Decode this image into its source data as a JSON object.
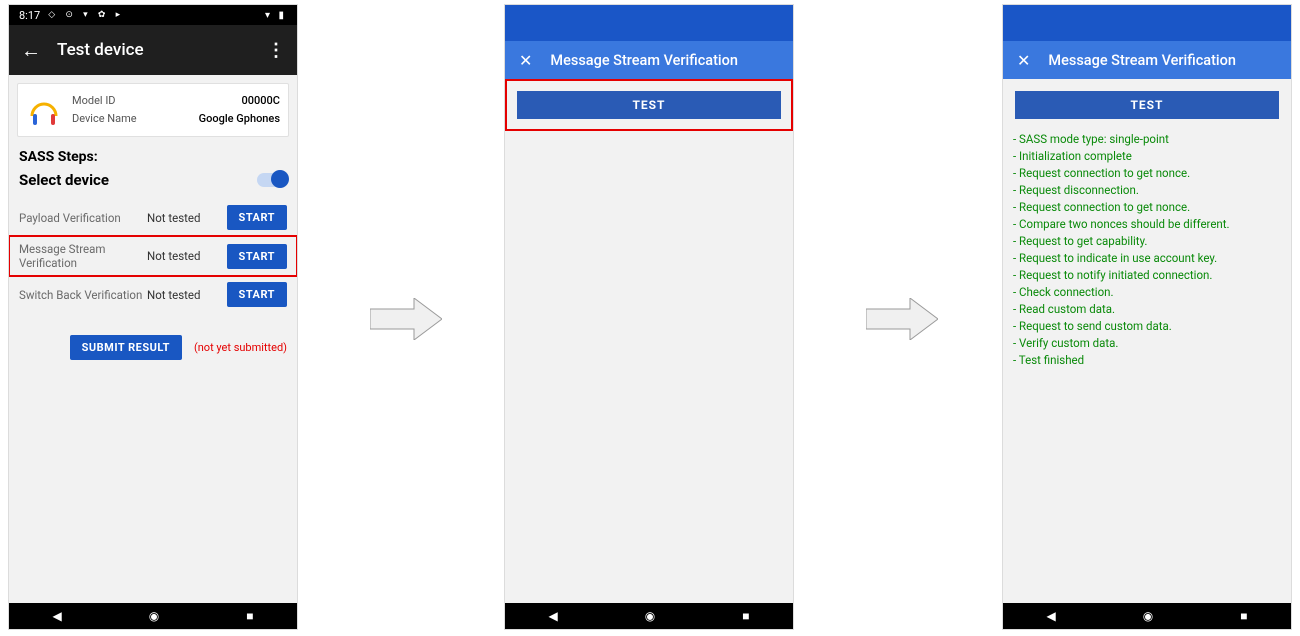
{
  "colors": {
    "bluePrimary": "#1957c2",
    "blueBrand": "#1a56c7",
    "blueSub": "#3a78de",
    "blueTest": "#2a5bb5",
    "red": "#e50000",
    "green": "#0a8a0a",
    "greyBg": "#f2f2f2"
  },
  "phone1": {
    "statusbar": {
      "time": "8:17",
      "sysIcons": "◇ ⊙ ▾ ✿ ▸",
      "rightIcons": "▾ ▮"
    },
    "appbar": {
      "title": "Test device"
    },
    "device": {
      "modelIdLabel": "Model ID",
      "modelId": "00000C",
      "deviceNameLabel": "Device Name",
      "deviceName": "Google Gphones"
    },
    "sectionTitle": "SASS Steps:",
    "selectDeviceLabel": "Select device",
    "toggleOn": true,
    "steps": [
      {
        "name": "Payload Verification",
        "status": "Not tested",
        "button": "START",
        "highlight": false
      },
      {
        "name": "Message Stream Verification",
        "status": "Not tested",
        "button": "START",
        "highlight": true
      },
      {
        "name": "Switch Back Verification",
        "status": "Not tested",
        "button": "START",
        "highlight": false
      }
    ],
    "submitLabel": "SUBMIT RESULT",
    "submitNote": "(not yet submitted)"
  },
  "phone2": {
    "subbarTitle": "Message Stream Verification",
    "testButton": "TEST"
  },
  "phone3": {
    "subbarTitle": "Message Stream Verification",
    "testButton": "TEST",
    "log": [
      "- SASS mode type: single-point",
      "- Initialization complete",
      "- Request connection to get nonce.",
      "- Request disconnection.",
      "- Request connection to get nonce.",
      "- Compare two nonces should be different.",
      "- Request to get capability.",
      "- Request to indicate in use account key.",
      "- Request to notify initiated connection.",
      "- Check connection.",
      "- Read custom data.",
      "- Request to send custom data.",
      "- Verify custom data.",
      "- Test finished"
    ]
  }
}
